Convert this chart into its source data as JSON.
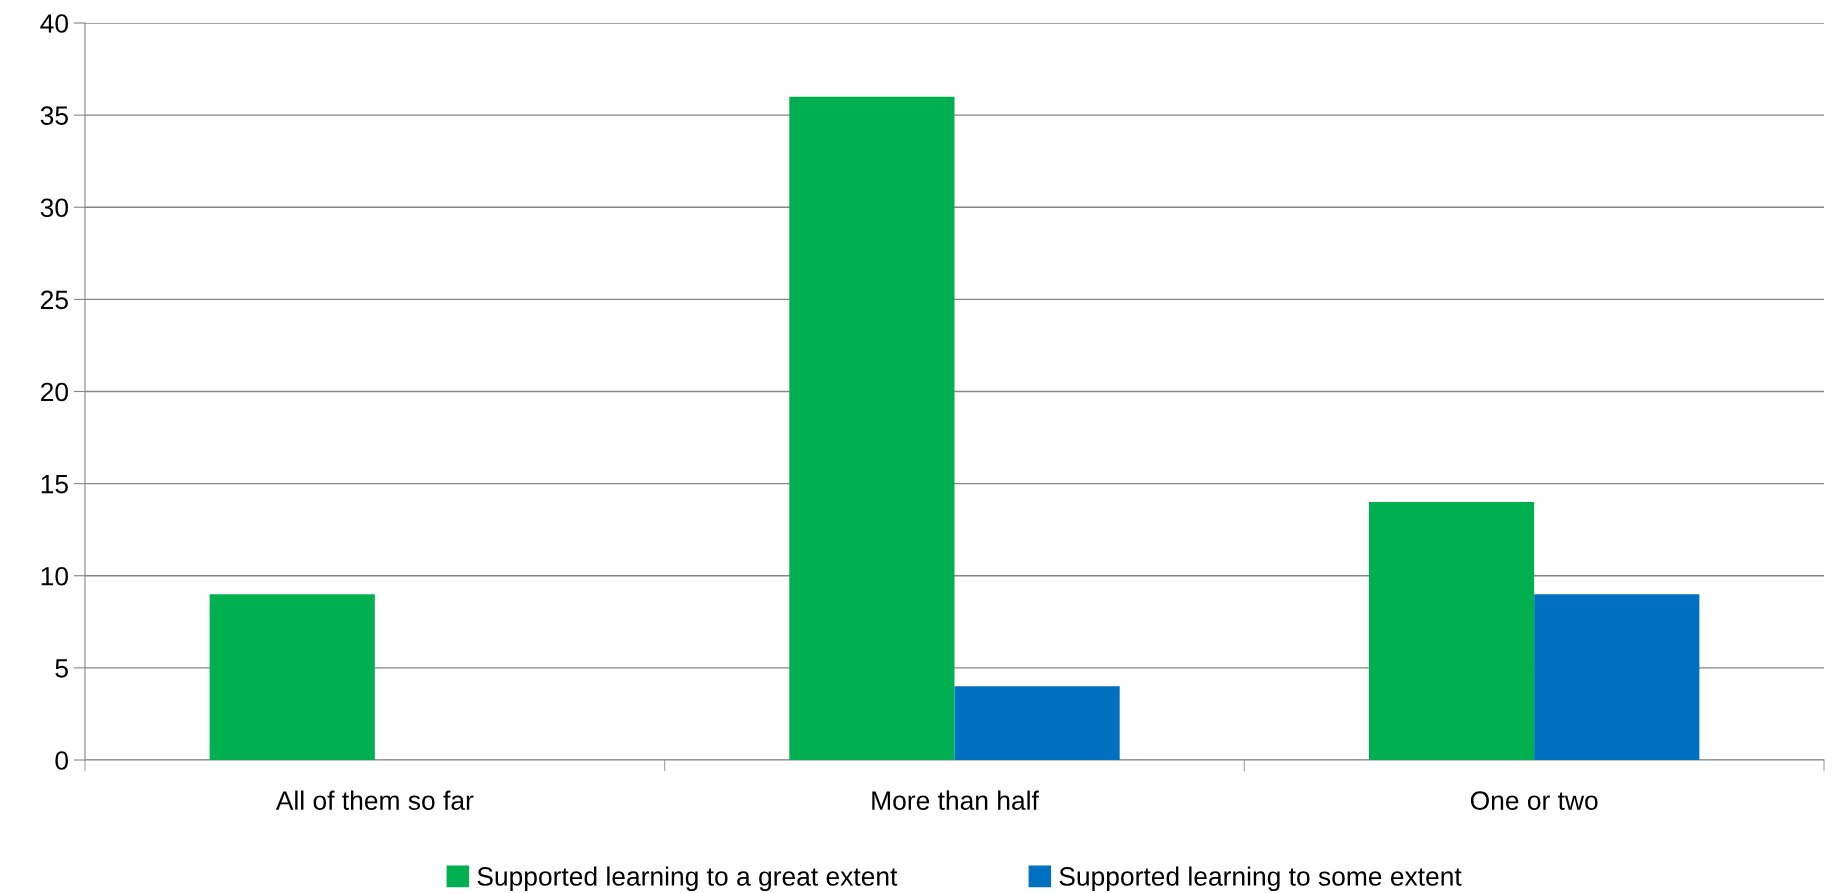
{
  "chart_data": {
    "type": "bar",
    "categories": [
      "All of them so far",
      "More than half",
      "One or two"
    ],
    "series": [
      {
        "name": "Supported learning to a great extent",
        "color": "#00b050",
        "values": [
          9,
          36,
          14
        ]
      },
      {
        "name": "Supported learning to some extent",
        "color": "#0070c0",
        "values": [
          0,
          4,
          9
        ]
      }
    ],
    "ylim": [
      0,
      40
    ],
    "yticks": [
      0,
      5,
      10,
      15,
      20,
      25,
      30,
      35,
      40
    ],
    "grid": "y",
    "legend": "bottom"
  }
}
